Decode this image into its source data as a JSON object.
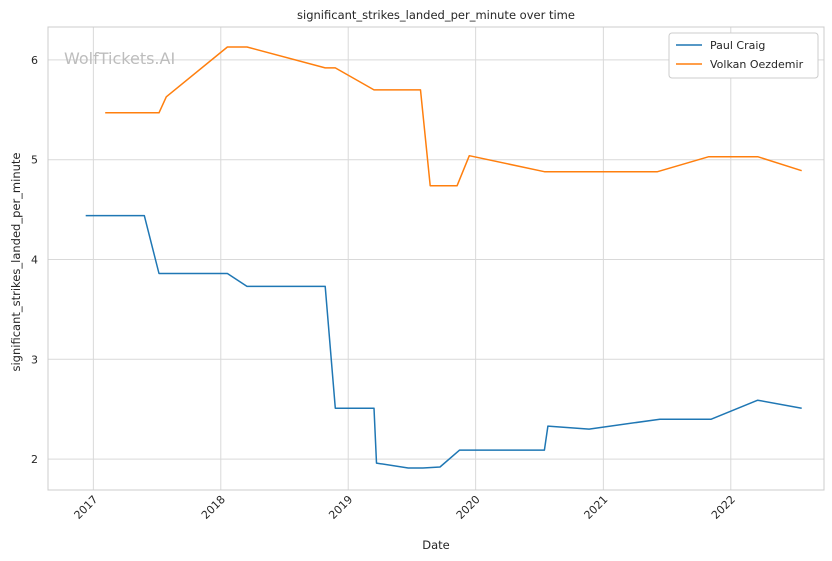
{
  "chart_data": {
    "type": "line",
    "title": "significant_strikes_landed_per_minute over time",
    "xlabel": "Date",
    "ylabel": "significant_strikes_landed_per_minute",
    "watermark": "WolfTickets.AI",
    "xlim": [
      "2016-08-24",
      "2022-09-25"
    ],
    "ylim": [
      1.69,
      6.33
    ],
    "x_ticks": [
      "2017-01-01",
      "2018-01-01",
      "2019-01-01",
      "2020-01-01",
      "2021-01-01",
      "2022-01-01"
    ],
    "x_tick_labels": [
      "2017",
      "2018",
      "2019",
      "2020",
      "2021",
      "2022"
    ],
    "y_ticks": [
      2,
      3,
      4,
      5,
      6
    ],
    "y_tick_labels": [
      "2",
      "3",
      "4",
      "5",
      "6"
    ],
    "grid": true,
    "legend_position": "top-right",
    "series": [
      {
        "name": "Paul Craig",
        "color": "#1f77b4",
        "points": [
          [
            "2016-12-10",
            4.44
          ],
          [
            "2017-05-27",
            4.44
          ],
          [
            "2017-07-08",
            3.86
          ],
          [
            "2018-01-20",
            3.86
          ],
          [
            "2018-03-17",
            3.73
          ],
          [
            "2018-10-27",
            3.73
          ],
          [
            "2018-11-25",
            2.51
          ],
          [
            "2019-03-16",
            2.51
          ],
          [
            "2019-03-23",
            1.96
          ],
          [
            "2019-06-22",
            1.91
          ],
          [
            "2019-08-03",
            1.91
          ],
          [
            "2019-09-21",
            1.92
          ],
          [
            "2019-11-16",
            2.09
          ],
          [
            "2020-07-16",
            2.09
          ],
          [
            "2020-07-26",
            2.33
          ],
          [
            "2020-11-21",
            2.3
          ],
          [
            "2021-06-12",
            2.4
          ],
          [
            "2021-11-06",
            2.4
          ],
          [
            "2022-03-19",
            2.59
          ],
          [
            "2022-07-23",
            2.51
          ]
        ]
      },
      {
        "name": "Volkan Oezdemir",
        "color": "#ff7f0e",
        "points": [
          [
            "2017-02-04",
            5.47
          ],
          [
            "2017-07-08",
            5.47
          ],
          [
            "2017-07-29",
            5.63
          ],
          [
            "2018-01-20",
            6.13
          ],
          [
            "2018-03-17",
            6.13
          ],
          [
            "2018-10-27",
            5.92
          ],
          [
            "2018-11-25",
            5.92
          ],
          [
            "2019-03-16",
            5.7
          ],
          [
            "2019-07-27",
            5.7
          ],
          [
            "2019-08-24",
            4.74
          ],
          [
            "2019-11-09",
            4.74
          ],
          [
            "2019-12-14",
            5.04
          ],
          [
            "2020-07-16",
            4.88
          ],
          [
            "2021-06-05",
            4.88
          ],
          [
            "2021-10-30",
            5.03
          ],
          [
            "2022-03-19",
            5.03
          ],
          [
            "2022-07-23",
            4.89
          ]
        ]
      }
    ]
  }
}
